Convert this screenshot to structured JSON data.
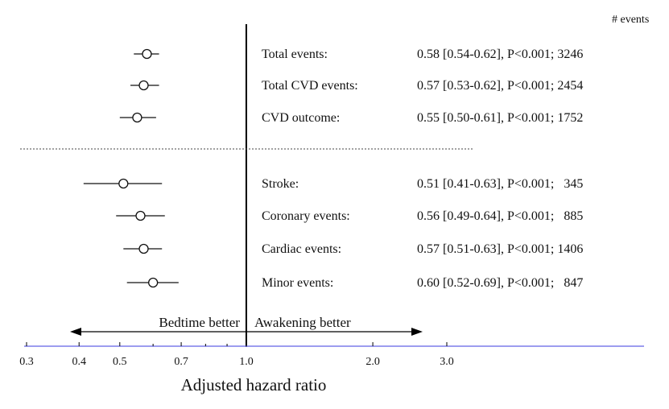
{
  "header": {
    "events_label": "# events"
  },
  "chart_data": {
    "type": "forest",
    "xlabel": "Adjusted hazard ratio",
    "xscale": "log",
    "xlim": [
      0.3,
      3.0
    ],
    "reference_line": 1.0,
    "grid": false,
    "xticks": [
      {
        "value": 0.3,
        "label": "0.3"
      },
      {
        "value": 0.4,
        "label": "0.4"
      },
      {
        "value": 0.5,
        "label": "0.5"
      },
      {
        "value": 0.7,
        "label": "0.7"
      },
      {
        "value": 1.0,
        "label": "1.0"
      },
      {
        "value": 2.0,
        "label": "2.0"
      },
      {
        "value": 3.0,
        "label": "3.0"
      }
    ],
    "direction_left": "Bedtime better",
    "direction_right": "Awakening better",
    "groups": [
      {
        "rows": [
          {
            "label": "Total events:",
            "hr": 0.58,
            "lo": 0.54,
            "hi": 0.62,
            "stat": "0.58 [0.54-0.62], P<0.001; 3246"
          },
          {
            "label": "Total CVD events:",
            "hr": 0.57,
            "lo": 0.53,
            "hi": 0.62,
            "stat": "0.57 [0.53-0.62], P<0.001; 2454"
          },
          {
            "label": "CVD outcome:",
            "hr": 0.55,
            "lo": 0.5,
            "hi": 0.61,
            "stat": "0.55 [0.50-0.61], P<0.001; 1752"
          }
        ]
      },
      {
        "rows": [
          {
            "label": "Stroke:",
            "hr": 0.51,
            "lo": 0.41,
            "hi": 0.63,
            "stat": "0.51 [0.41-0.63], P<0.001;   345"
          },
          {
            "label": "Coronary events:",
            "hr": 0.56,
            "lo": 0.49,
            "hi": 0.64,
            "stat": "0.56 [0.49-0.64], P<0.001;   885"
          },
          {
            "label": "Cardiac events:",
            "hr": 0.57,
            "lo": 0.51,
            "hi": 0.63,
            "stat": "0.57 [0.51-0.63], P<0.001; 1406"
          },
          {
            "label": "Minor events:",
            "hr": 0.6,
            "lo": 0.52,
            "hi": 0.69,
            "stat": "0.60 [0.52-0.69], P<0.001;   847"
          }
        ]
      }
    ],
    "colors": {
      "axis_line": "#7b7bea",
      "marks": "#111111"
    }
  }
}
